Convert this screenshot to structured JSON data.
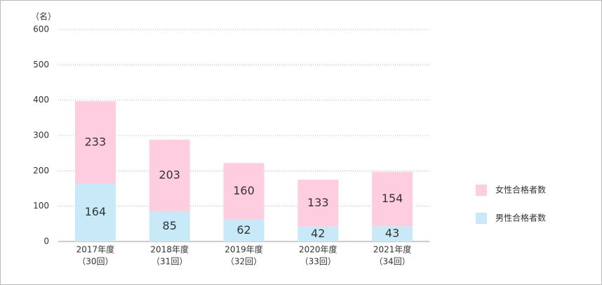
{
  "chart_data": {
    "type": "stacked_bar",
    "y_unit_label": "（名）",
    "categories": [
      [
        "2017年度",
        "（30回）"
      ],
      [
        "2018年度",
        "（31回）"
      ],
      [
        "2019年度",
        "（32回）"
      ],
      [
        "2020年度",
        "（33回）"
      ],
      [
        "2021年度",
        "（34回）"
      ]
    ],
    "series": [
      {
        "name": "男性合格者数",
        "color": "#c8eaf8",
        "values": [
          164,
          85,
          62,
          42,
          43
        ]
      },
      {
        "name": "女性合格者数",
        "color": "#ffcde0",
        "values": [
          233,
          203,
          160,
          133,
          154
        ]
      }
    ],
    "ylim": [
      0,
      600
    ],
    "yticks": [
      0,
      100,
      200,
      300,
      400,
      500,
      600
    ],
    "grid": true,
    "legend": "right"
  }
}
